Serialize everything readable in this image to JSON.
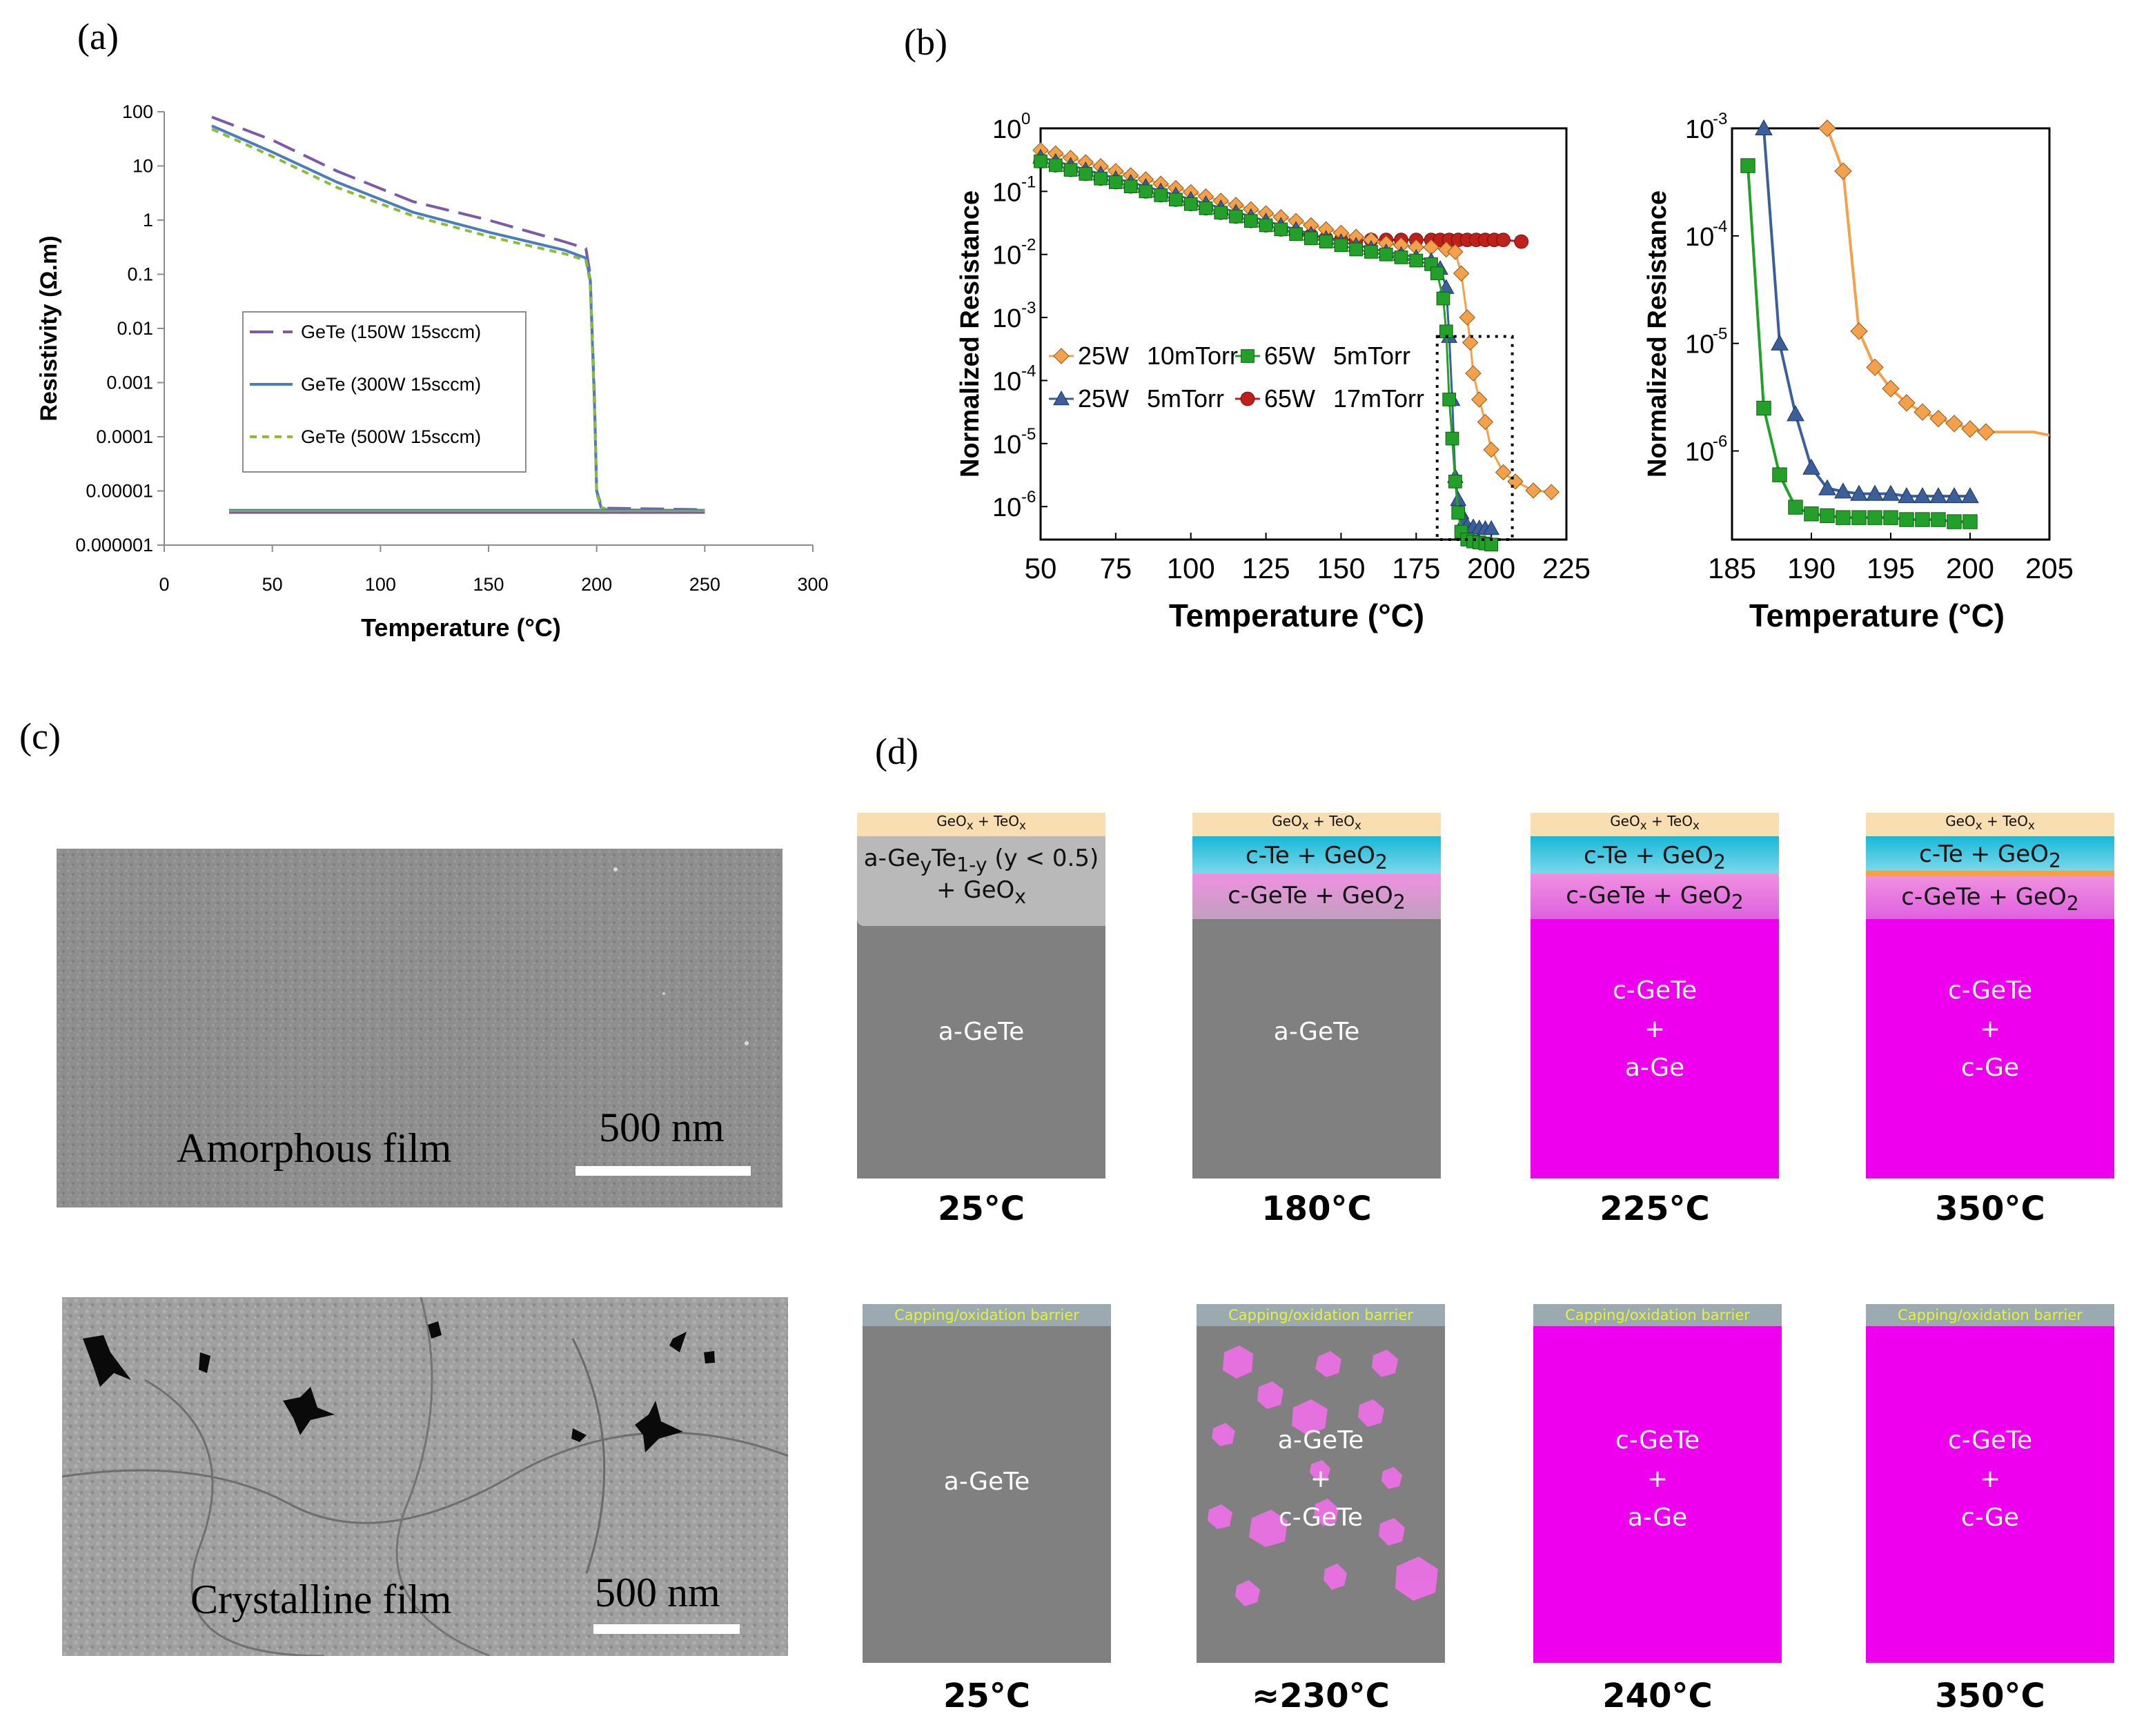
{
  "panel_labels": {
    "a": "(a)",
    "b": "(b)",
    "c": "(c)",
    "d": "(d)"
  },
  "colors": {
    "purple": "#7b5aa6",
    "blue": "#4a7ebb",
    "green": "#8cba3a",
    "orange": "#f5a04a",
    "steel": "#3a5f9a",
    "dgreen": "#22a02a",
    "red": "#c0201a",
    "gray": "#808080",
    "magenta": "#ee00ee",
    "oxide": "#f8deb0",
    "cyan": "#18b8d8",
    "barrier": "#9aaab0"
  },
  "chart_data": [
    {
      "type": "line",
      "title": "",
      "xlabel": "Temperature (°C)",
      "ylabel": "Resistivity (Ω.m)",
      "xlim": [
        0,
        300
      ],
      "ylim": [
        1e-06,
        100
      ],
      "yscale": "log",
      "xticks": [
        "0",
        "50",
        "100",
        "150",
        "200",
        "250",
        "300"
      ],
      "yticks": [
        "100",
        "10",
        "1",
        "0.1",
        "0.01",
        "0.001",
        "0.0001",
        "0.00001",
        "0.000001"
      ],
      "series": [
        {
          "name": "GeTe (150W 15sccm)",
          "style": "dashed-long",
          "x": [
            22,
            50,
            80,
            115,
            150,
            185,
            195,
            197,
            199,
            200,
            202,
            205,
            250
          ],
          "y": [
            80,
            30,
            8,
            2.2,
            1.0,
            0.4,
            0.3,
            0.1,
            0.0005,
            1e-05,
            5.5e-06,
            4.8e-06,
            4.5e-06
          ]
        },
        {
          "name": "GeTe (300W 15sccm)",
          "style": "solid",
          "x": [
            22,
            50,
            80,
            115,
            150,
            185,
            195,
            197,
            199,
            200,
            202,
            205,
            250
          ],
          "y": [
            55,
            18,
            5,
            1.4,
            0.6,
            0.28,
            0.2,
            0.08,
            0.0004,
            1e-05,
            5e-06,
            4.5e-06,
            4.3e-06
          ]
        },
        {
          "name": "GeTe (500W 15sccm)",
          "style": "dashed-short",
          "x": [
            22,
            50,
            80,
            115,
            150,
            185,
            195,
            197,
            199,
            200,
            202,
            205,
            250
          ],
          "y": [
            48,
            15,
            4,
            1.2,
            0.5,
            0.24,
            0.18,
            0.07,
            0.0003,
            9e-06,
            5e-06,
            4.4e-06,
            4.2e-06
          ]
        }
      ],
      "cooling_line": {
        "x": [
          30,
          250
        ],
        "y": [
          4.2e-06,
          4.2e-06
        ]
      },
      "legend_location": "middle-left"
    },
    {
      "type": "line",
      "title": "",
      "xlabel": "Temperature (°C)",
      "ylabel": "Normalized Resistance",
      "xlim": [
        50,
        225
      ],
      "ylim": [
        3e-07,
        1
      ],
      "yscale": "log",
      "xticks": [
        "50",
        "75",
        "100",
        "125",
        "150",
        "175",
        "200",
        "225"
      ],
      "ytick_exponents": [
        "0",
        "-1",
        "-2",
        "-3",
        "-4",
        "-5",
        "-6"
      ],
      "series": [
        {
          "name": "25W 10mTorr",
          "marker": "diamond",
          "x": [
            50,
            55,
            60,
            65,
            70,
            75,
            80,
            85,
            90,
            95,
            100,
            105,
            110,
            115,
            120,
            125,
            130,
            135,
            140,
            145,
            150,
            155,
            160,
            165,
            170,
            175,
            180,
            185,
            188,
            190,
            192,
            193,
            194,
            196,
            198,
            200,
            204,
            208,
            214,
            220
          ],
          "y": [
            0.45,
            0.4,
            0.34,
            0.29,
            0.25,
            0.21,
            0.18,
            0.155,
            0.132,
            0.113,
            0.097,
            0.083,
            0.071,
            0.061,
            0.052,
            0.045,
            0.039,
            0.034,
            0.029,
            0.025,
            0.022,
            0.019,
            0.017,
            0.015,
            0.014,
            0.013,
            0.013,
            0.012,
            0.011,
            0.005,
            0.001,
            0.0004,
            0.00013,
            5e-05,
            2.2e-05,
            8e-06,
            3.5e-06,
            2.5e-06,
            1.8e-06,
            1.7e-06
          ]
        },
        {
          "name": "25W 5mTorr",
          "marker": "triangle",
          "x": [
            50,
            55,
            60,
            65,
            70,
            75,
            80,
            85,
            90,
            95,
            100,
            105,
            110,
            115,
            120,
            125,
            130,
            135,
            140,
            145,
            150,
            155,
            160,
            165,
            170,
            175,
            180,
            183,
            185,
            186,
            187,
            188,
            189,
            190,
            191,
            192,
            194,
            196,
            198,
            200
          ],
          "y": [
            0.35,
            0.3,
            0.26,
            0.22,
            0.19,
            0.16,
            0.14,
            0.12,
            0.102,
            0.088,
            0.075,
            0.064,
            0.055,
            0.047,
            0.04,
            0.034,
            0.029,
            0.025,
            0.021,
            0.018,
            0.016,
            0.014,
            0.0125,
            0.011,
            0.01,
            0.009,
            0.008,
            0.006,
            0.003,
            0.0005,
            5e-05,
            3e-06,
            1.3e-06,
            8e-07,
            6e-07,
            5e-07,
            4.8e-07,
            4.6e-07,
            4.5e-07,
            4.5e-07
          ]
        },
        {
          "name": "65W 5mTorr",
          "marker": "square",
          "x": [
            50,
            55,
            60,
            65,
            70,
            75,
            80,
            85,
            90,
            95,
            100,
            105,
            110,
            115,
            120,
            125,
            130,
            135,
            140,
            145,
            150,
            155,
            160,
            165,
            170,
            175,
            180,
            182,
            184,
            185,
            186,
            187,
            188,
            189,
            190,
            192,
            194,
            196,
            198,
            200
          ],
          "y": [
            0.3,
            0.26,
            0.22,
            0.19,
            0.16,
            0.14,
            0.12,
            0.1,
            0.087,
            0.074,
            0.063,
            0.054,
            0.046,
            0.04,
            0.034,
            0.029,
            0.025,
            0.021,
            0.018,
            0.016,
            0.014,
            0.012,
            0.011,
            0.01,
            0.009,
            0.008,
            0.007,
            0.005,
            0.002,
            0.0006,
            5e-05,
            1.2e-05,
            2.5e-06,
            8e-07,
            4e-07,
            3e-07,
            2.8e-07,
            2.7e-07,
            2.6e-07,
            2.5e-07
          ]
        },
        {
          "name": "65W 17mTorr",
          "marker": "circle",
          "x": [
            50,
            55,
            60,
            65,
            70,
            75,
            80,
            85,
            90,
            95,
            100,
            105,
            110,
            115,
            120,
            125,
            130,
            135,
            140,
            145,
            150,
            155,
            160,
            165,
            170,
            175,
            180,
            183,
            186,
            189,
            192,
            195,
            198,
            201,
            204,
            210
          ],
          "y": [
            0.3,
            0.26,
            0.22,
            0.19,
            0.16,
            0.14,
            0.12,
            0.1,
            0.087,
            0.074,
            0.063,
            0.054,
            0.046,
            0.04,
            0.034,
            0.029,
            0.025,
            0.022,
            0.02,
            0.018,
            0.017,
            0.017,
            0.017,
            0.017,
            0.017,
            0.017,
            0.017,
            0.017,
            0.017,
            0.017,
            0.017,
            0.017,
            0.017,
            0.017,
            0.017,
            0.016
          ]
        }
      ],
      "inset_box": {
        "x": [
          182,
          207
        ],
        "y": [
          3e-07,
          0.0005
        ]
      },
      "legend_location": "lower-left"
    },
    {
      "type": "line",
      "title": "",
      "xlabel": "Temperature (°C)",
      "ylabel": "Normalized Resistance",
      "xlim": [
        185,
        205
      ],
      "ylim": [
        1.5e-07,
        0.001
      ],
      "yscale": "log",
      "xticks": [
        "185",
        "190",
        "195",
        "200",
        "205"
      ],
      "ytick_exponents": [
        "-3",
        "-4",
        "-5",
        "-6"
      ],
      "series": [
        {
          "name": "25W 10mTorr",
          "marker": "diamond",
          "x": [
            191,
            192,
            193,
            194,
            195,
            196,
            197,
            198,
            199,
            200,
            201,
            204,
            205
          ],
          "y": [
            0.001,
            0.0004,
            1.3e-05,
            6e-06,
            3.8e-06,
            2.8e-06,
            2.3e-06,
            2e-06,
            1.8e-06,
            1.6e-06,
            1.5e-06,
            1.5e-06,
            1.4e-06
          ]
        },
        {
          "name": "25W 5mTorr",
          "marker": "triangle",
          "x": [
            187,
            188,
            189,
            190,
            191,
            192,
            193,
            194,
            195,
            196,
            197,
            198,
            199,
            200
          ],
          "y": [
            0.001,
            1e-05,
            2.2e-06,
            7e-07,
            4.5e-07,
            4.2e-07,
            4e-07,
            4e-07,
            4e-07,
            3.8e-07,
            3.8e-07,
            3.8e-07,
            3.8e-07,
            3.8e-07
          ]
        },
        {
          "name": "65W 5mTorr",
          "marker": "square",
          "x": [
            186,
            187,
            188,
            189,
            190,
            191,
            192,
            193,
            194,
            195,
            196,
            197,
            198,
            199,
            200
          ],
          "y": [
            0.00045,
            2.5e-06,
            6e-07,
            3e-07,
            2.6e-07,
            2.5e-07,
            2.4e-07,
            2.4e-07,
            2.4e-07,
            2.4e-07,
            2.3e-07,
            2.3e-07,
            2.3e-07,
            2.2e-07,
            2.2e-07
          ]
        }
      ]
    }
  ],
  "panel_a_legend": [
    "GeTe (150W 15sccm)",
    "GeTe (300W 15sccm)",
    "GeTe (500W 15sccm)"
  ],
  "panel_b_legend": [
    [
      "25W",
      "10mTorr"
    ],
    [
      "65W",
      "5mTorr"
    ],
    [
      "25W",
      "5mTorr"
    ],
    [
      "65W",
      "17mTorr"
    ]
  ],
  "sem": {
    "amorphous_caption": "Amorphous film",
    "crystalline_caption": "Crystalline film",
    "scale_label": "500 nm"
  },
  "panel_d": {
    "top_row": [
      {
        "temp": "25°C",
        "oxide": "GeOx + TeOx",
        "layer2": "a-GeyTe1-y (y < 0.5)",
        "layer2b": "+ GeOx",
        "bulk": [
          "a-GeTe"
        ]
      },
      {
        "temp": "180°C",
        "oxide": "GeOx + TeOx",
        "layer2": "c-Te + GeO2",
        "layer3": "c-GeTe + GeO2",
        "bulk": [
          "a-GeTe"
        ]
      },
      {
        "temp": "225°C",
        "oxide": "GeOx + TeOx",
        "layer2": "c-Te + GeO2",
        "layer3": "c-GeTe + GeO2",
        "bulk": [
          "c-GeTe",
          "+",
          "a-Ge"
        ]
      },
      {
        "temp": "350°C",
        "oxide": "GeOx + TeOx",
        "layer2": "c-Te + GeO2",
        "layer3": "c-GeTe + GeO2",
        "bulk": [
          "c-GeTe",
          "+",
          "c-Ge"
        ]
      }
    ],
    "bottom_row": [
      {
        "temp": "25°C",
        "barrier": "Capping/oxidation barrier",
        "bulk": [
          "a-GeTe"
        ]
      },
      {
        "temp": "≈230°C",
        "barrier": "Capping/oxidation barrier",
        "bulk": [
          "a-GeTe",
          "+",
          "c-GeTe"
        ]
      },
      {
        "temp": "240°C",
        "barrier": "Capping/oxidation barrier",
        "bulk": [
          "c-GeTe",
          "+",
          "a-Ge"
        ]
      },
      {
        "temp": "350°C",
        "barrier": "Capping/oxidation barrier",
        "bulk": [
          "c-GeTe",
          "+",
          "c-Ge"
        ]
      }
    ]
  }
}
